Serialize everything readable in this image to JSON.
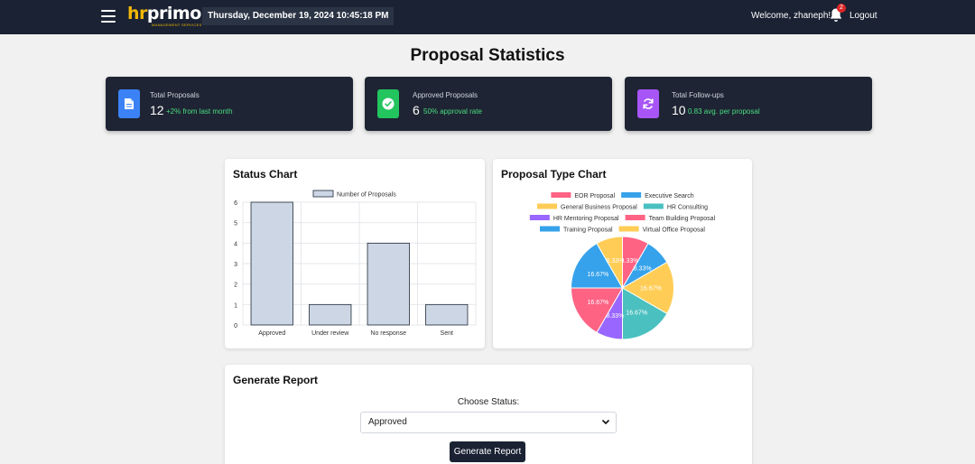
{
  "header": {
    "logo_text_hr": "hr",
    "logo_text_primo": "primo",
    "logo_tagline": "MANAGEMENT SERVICES",
    "datetime": "Thursday, December 19, 2024 10:45:18 PM",
    "welcome": "Welcome, zhaneph!",
    "notification_count": "2",
    "logout_label": "Logout"
  },
  "page": {
    "title": "Proposal Statistics"
  },
  "stats": [
    {
      "title": "Total Proposals",
      "value": "12",
      "note": "+2% from last month",
      "icon": "document-icon",
      "color": "#3b82f6"
    },
    {
      "title": "Approved Proposals",
      "value": "6",
      "note": "50% approval rate",
      "icon": "check-circle-icon",
      "color": "#22c55e"
    },
    {
      "title": "Total Follow-ups",
      "value": "10",
      "note": "0.83 avg. per proposal",
      "icon": "refresh-icon",
      "color": "#a855f7"
    }
  ],
  "status_chart": {
    "title": "Status Chart"
  },
  "type_chart": {
    "title": "Proposal Type Chart"
  },
  "chart_data": [
    {
      "type": "bar",
      "title": "Status Chart",
      "categories": [
        "Approved",
        "Under review",
        "No response",
        "Sent"
      ],
      "series": [
        {
          "name": "Number of Proposals",
          "values": [
            6,
            1,
            4,
            1
          ]
        }
      ],
      "ylim": [
        0,
        6
      ],
      "yticks": [
        0,
        1,
        2,
        3,
        4,
        5,
        6
      ],
      "legend": "top",
      "grid": true,
      "fill_color": "#ccd6e4",
      "stroke_color": "#1f2937"
    },
    {
      "type": "pie",
      "title": "Proposal Type Chart",
      "legend": "top",
      "labels": [
        "EOR Proposal",
        "Executive Search",
        "General Business Proposal",
        "HR Consulting",
        "HR Mentoring Proposal",
        "Team Building Proposal",
        "Training Proposal",
        "Virtual Office Proposal"
      ],
      "colors": [
        "#ff6384",
        "#36a2eb",
        "#ffcd56",
        "#4bc0c0",
        "#9966ff",
        "#ff6384",
        "#36a2eb",
        "#ffcd56"
      ],
      "values": [
        8.33,
        8.33,
        16.67,
        16.67,
        8.33,
        16.67,
        16.67,
        8.33
      ],
      "data_labels": [
        "8.33%",
        "8.33%",
        "16.67%",
        "16.67%",
        "8.33%",
        "16.67%",
        "16.67%",
        "8.33%"
      ]
    }
  ],
  "report": {
    "title": "Generate Report",
    "choose_label": "Choose Status:",
    "selected_status": "Approved",
    "button_label": "Generate Report"
  }
}
